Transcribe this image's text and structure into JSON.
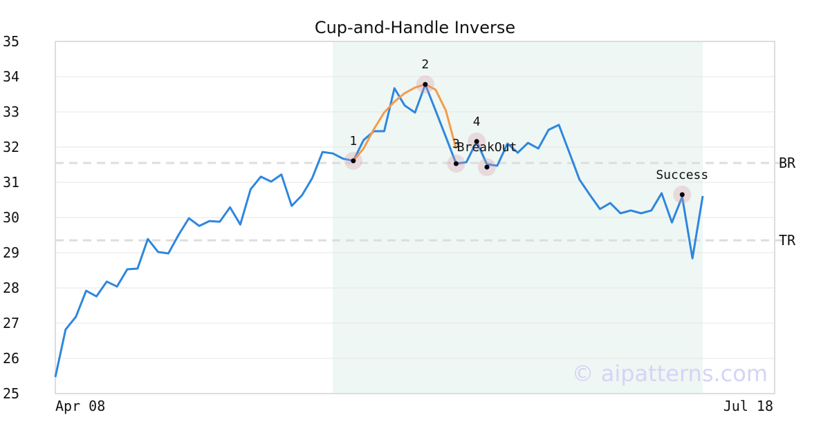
{
  "chart_data": {
    "type": "line",
    "title": "Cup-and-Handle Inverse",
    "xlim": [
      0,
      70
    ],
    "xticks": [
      {
        "value": 0,
        "label": "Apr 08"
      },
      {
        "value": 70,
        "label": "Jul 18"
      }
    ],
    "ylim": [
      25,
      35
    ],
    "yticks": [
      25,
      26,
      27,
      28,
      29,
      30,
      31,
      32,
      33,
      34,
      35
    ],
    "grid": true,
    "highlight": [
      27,
      63
    ],
    "highlight_color": "#eef7f3",
    "series": [
      {
        "color": "#2e86de",
        "x": [
          0,
          1,
          2,
          3,
          4,
          5,
          6,
          7,
          8,
          9,
          10,
          11,
          12,
          13,
          14,
          15,
          16,
          17,
          18,
          19,
          20,
          21,
          22,
          23,
          24,
          25,
          26,
          27,
          28,
          29,
          30,
          31,
          32,
          33,
          34,
          35,
          36,
          37,
          38,
          39,
          40,
          41,
          42,
          43,
          44,
          45,
          46,
          47,
          48,
          49,
          50,
          51,
          52,
          53,
          54,
          55,
          56,
          57,
          58,
          59,
          60,
          61,
          62,
          63
        ],
        "values": [
          25.47,
          26.82,
          27.18,
          27.92,
          27.76,
          28.18,
          28.04,
          28.53,
          28.55,
          29.39,
          29.02,
          28.98,
          29.51,
          29.98,
          29.76,
          29.9,
          29.88,
          30.29,
          29.8,
          30.8,
          31.16,
          31.02,
          31.22,
          30.33,
          30.63,
          31.12,
          31.86,
          31.82,
          31.67,
          31.61,
          32.2,
          32.45,
          32.45,
          33.67,
          33.18,
          32.98,
          33.78,
          33.04,
          32.29,
          31.53,
          31.57,
          32.16,
          31.51,
          31.47,
          32.1,
          31.84,
          32.12,
          31.96,
          32.49,
          32.63,
          31.86,
          31.08,
          30.65,
          30.24,
          30.41,
          30.12,
          30.2,
          30.12,
          30.2,
          30.69,
          29.86,
          30.59,
          28.84,
          30.61
        ]
      },
      {
        "color": "#f39c4a",
        "x": [
          29,
          30,
          31,
          32,
          33,
          34,
          35,
          36,
          37,
          38,
          39
        ],
        "values": [
          31.61,
          31.96,
          32.51,
          32.98,
          33.29,
          33.53,
          33.69,
          33.78,
          33.63,
          33.04,
          31.96
        ]
      }
    ],
    "markers": [
      {
        "label": "1",
        "x": 29,
        "y": 31.61
      },
      {
        "label": "2",
        "x": 36,
        "y": 33.78
      },
      {
        "label": "3",
        "x": 39,
        "y": 31.53
      },
      {
        "label": "4",
        "x": 41,
        "y": 32.16
      },
      {
        "label": "BreakOut",
        "x": 42,
        "y": 31.43
      },
      {
        "label": "Success",
        "x": 61,
        "y": 30.65
      }
    ],
    "levels": [
      {
        "label": "BR",
        "value": 31.55
      },
      {
        "label": "TR",
        "value": 29.35
      }
    ],
    "watermark": "© aipatterns.com"
  }
}
